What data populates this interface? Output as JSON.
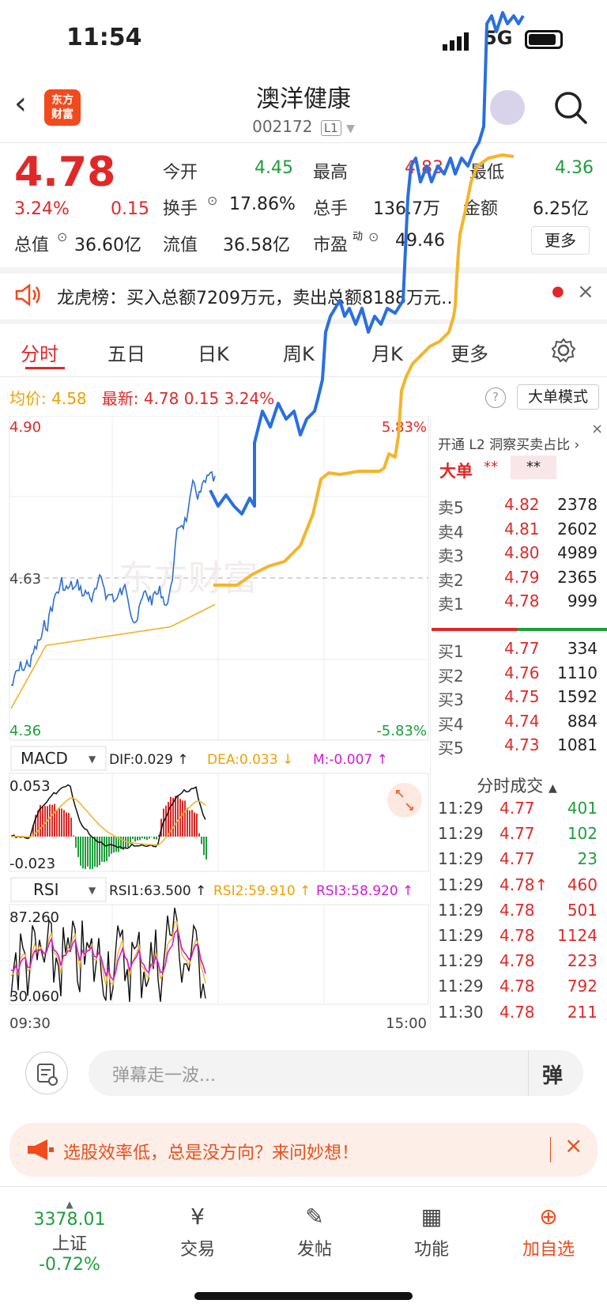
{
  "status": {
    "time": "11:54",
    "network": "5G"
  },
  "header": {
    "back_glyph": "‹",
    "logo_line1": "东方",
    "logo_line2": "财富",
    "name": "澳洋健康",
    "code": "002172",
    "level": "L1"
  },
  "quote": {
    "price": "4.78",
    "change_pct": "3.24%",
    "change": "0.15",
    "open_label": "今开",
    "open": "4.45",
    "high_label": "最高",
    "high": "4.83",
    "low_label": "最低",
    "low": "4.36",
    "turnover_label": "换手",
    "turnover": "17.86%",
    "volume_label": "总手",
    "volume": "136.7万",
    "amount_label": "金额",
    "amount": "6.25亿",
    "mktcap_label": "总值",
    "mktcap": "36.60亿",
    "float_label": "流值",
    "float": "36.58亿",
    "pe_label": "市盈",
    "pe_sup": "动",
    "pe": "49.46",
    "more": "更多"
  },
  "lhb": {
    "text": "龙虎榜：买入总额7209万元，卖出总额8188万元…"
  },
  "tabs": [
    "分时",
    "五日",
    "日K",
    "周K",
    "月K",
    "更多"
  ],
  "intraday": {
    "avg_label": "均价:",
    "avg": "4.58",
    "latest_label": "最新:",
    "latest": "4.78",
    "latest_chg": "0.15",
    "latest_pct": "3.24%",
    "mode_button": "大单模式",
    "y_top": "4.90",
    "y_mid": "4.63",
    "y_bot": "4.36",
    "pct_top": "5.83%",
    "pct_bot": "-5.83%",
    "time_start": "09:30",
    "time_end": "15:00",
    "watermark": "东方财富"
  },
  "macd": {
    "label": "MACD",
    "dif": "DIF:0.029 ↑",
    "dea": "DEA:0.033 ↓",
    "m": "M:-0.007 ↑",
    "top": "0.053",
    "bot": "-0.023"
  },
  "rsi": {
    "label": "RSI",
    "rsi1": "RSI1:63.500 ↑",
    "rsi2": "RSI2:59.910 ↑",
    "rsi3": "RSI3:58.920 ↑",
    "top": "87.260",
    "bot": "30.060"
  },
  "orderbook": {
    "l2_text": "开通 L2 洞察买卖占比 ›",
    "big_label": "大单",
    "big_stars1": "**",
    "big_stars2": "**",
    "asks": [
      {
        "label": "卖5",
        "price": "4.82",
        "vol": "2378"
      },
      {
        "label": "卖4",
        "price": "4.81",
        "vol": "2602"
      },
      {
        "label": "卖3",
        "price": "4.80",
        "vol": "4989"
      },
      {
        "label": "卖2",
        "price": "4.79",
        "vol": "2365"
      },
      {
        "label": "卖1",
        "price": "4.78",
        "vol": "999"
      }
    ],
    "bids": [
      {
        "label": "买1",
        "price": "4.77",
        "vol": "334"
      },
      {
        "label": "买2",
        "price": "4.76",
        "vol": "1110"
      },
      {
        "label": "买3",
        "price": "4.75",
        "vol": "1592"
      },
      {
        "label": "买4",
        "price": "4.74",
        "vol": "884"
      },
      {
        "label": "买5",
        "price": "4.73",
        "vol": "1081"
      }
    ],
    "trades_label": "分时成交",
    "trades": [
      {
        "t": "11:29",
        "p": "4.77",
        "v": "401",
        "dir": "green"
      },
      {
        "t": "11:29",
        "p": "4.77",
        "v": "102",
        "dir": "green"
      },
      {
        "t": "11:29",
        "p": "4.77",
        "v": "23",
        "dir": "green"
      },
      {
        "t": "11:29",
        "p": "4.78↑",
        "v": "460",
        "dir": "red"
      },
      {
        "t": "11:29",
        "p": "4.78",
        "v": "501",
        "dir": "red"
      },
      {
        "t": "11:29",
        "p": "4.78",
        "v": "1124",
        "dir": "red"
      },
      {
        "t": "11:29",
        "p": "4.78",
        "v": "223",
        "dir": "red"
      },
      {
        "t": "11:29",
        "p": "4.78",
        "v": "792",
        "dir": "red"
      },
      {
        "t": "11:30",
        "p": "4.78",
        "v": "211",
        "dir": "red"
      }
    ]
  },
  "input": {
    "placeholder": "弹幕走一波...",
    "danmu": "弹"
  },
  "banner": {
    "text": "选股效率低，总是没方向？来问妙想！"
  },
  "tabbar": {
    "index_value": "3378.01",
    "index_name": "上证",
    "index_pct": "-0.72%",
    "trade": "交易",
    "post": "发帖",
    "func": "功能",
    "add": "加自选"
  },
  "colors": {
    "up": "#e02828",
    "down": "#1e9e3c",
    "avg_line": "#f0b429",
    "price_line": "#2f6fd0",
    "annot_blue": "#2a6fe0",
    "annot_yellow": "#f4b52b"
  }
}
